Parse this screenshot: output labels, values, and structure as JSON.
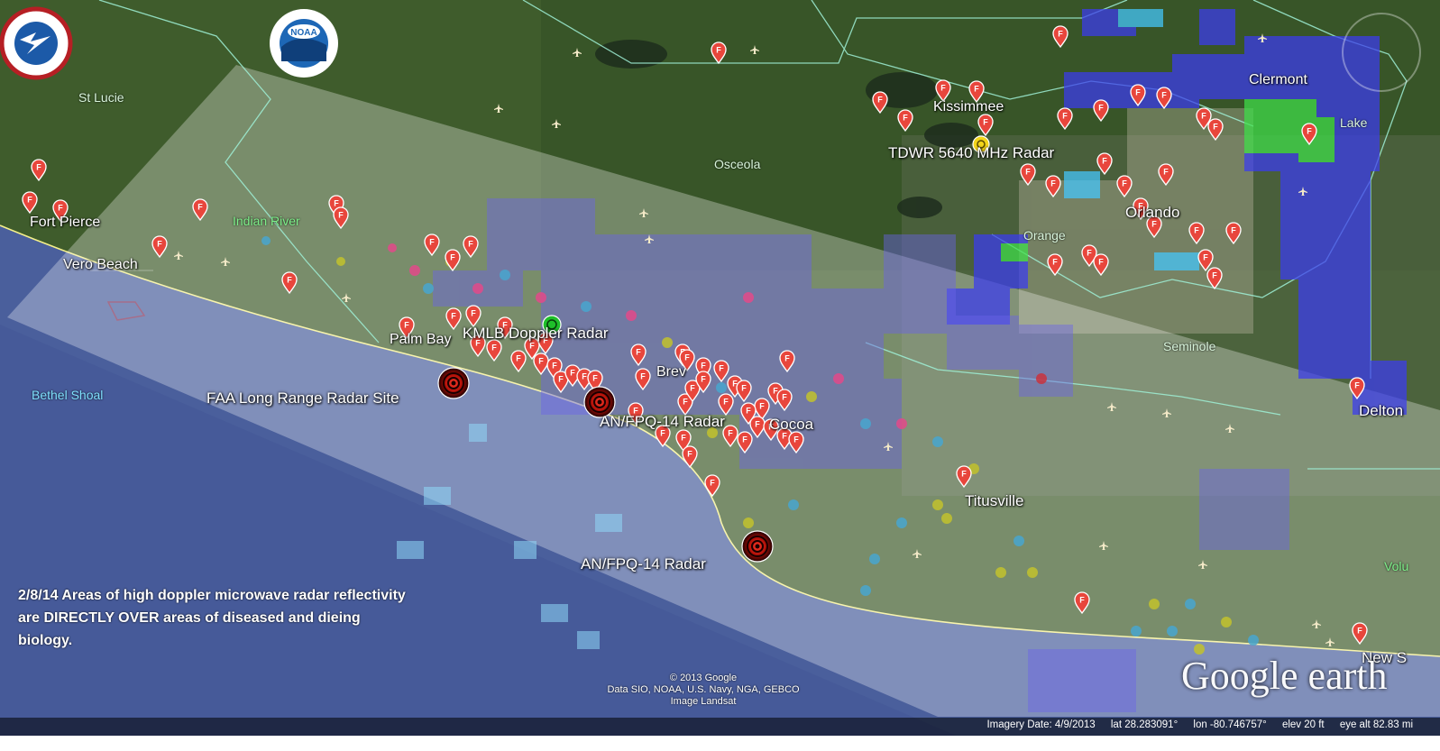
{
  "logos": {
    "nws_icon": "national-weather-service-logo",
    "noaa_icon": "noaa-logo"
  },
  "places": {
    "st_lucie": "St Lucie",
    "fort_pierce": "Fort Pierce",
    "indian_river": "Indian River",
    "vero_beach": "Vero Beach",
    "palm_bay": "Palm Bay",
    "bethel_shoal": "Bethel Shoal",
    "osceola": "Osceola",
    "kissimmee": "Kissimmee",
    "clermont": "Clermont",
    "lake": "Lake",
    "orlando": "Orlando",
    "orange": "Orange",
    "seminole": "Seminole",
    "deltona": "Delton",
    "cocoa": "Cocoa",
    "titusville": "Titusville",
    "new_smyrna": "New S",
    "volusia": "Volu",
    "brevard": "Brev"
  },
  "radar_sites": {
    "kmlb": "KMLB Doppler Radar",
    "tdwr": "TDWR 5640 MHz Radar",
    "faa": "FAA Long Range Radar Site",
    "fpq14_north": "AN/FPQ-14 Radar",
    "fpq14_south": "AN/FPQ-14 Radar"
  },
  "caption": "2/8/14 Areas of high doppler microwave radar reflectivity are DIRECTLY OVER areas of diseased and dieing biology.",
  "copyright": {
    "line1": "© 2013 Google",
    "line2": "Data SIO, NOAA, U.S. Navy, NGA, GEBCO",
    "line3": "Image Landsat"
  },
  "brand": "Google earth",
  "status": {
    "imagery_date": "Imagery Date: 4/9/2013",
    "lat": "lat   28.283091°",
    "lon": "lon  -80.746757°",
    "elev": "elev    20 ft",
    "eye_alt": "eye alt  82.83 mi"
  },
  "colors": {
    "ocean": "#4a5f9c",
    "land": "#3f5c2c",
    "marker": "#e8463c",
    "overlay": "#ffffff",
    "reflectivity_blue": "#3b3cf0",
    "reflectivity_green": "#3fe04a"
  },
  "markers": {
    "icon": "fish-kill-marker-icon",
    "letter": "F"
  }
}
